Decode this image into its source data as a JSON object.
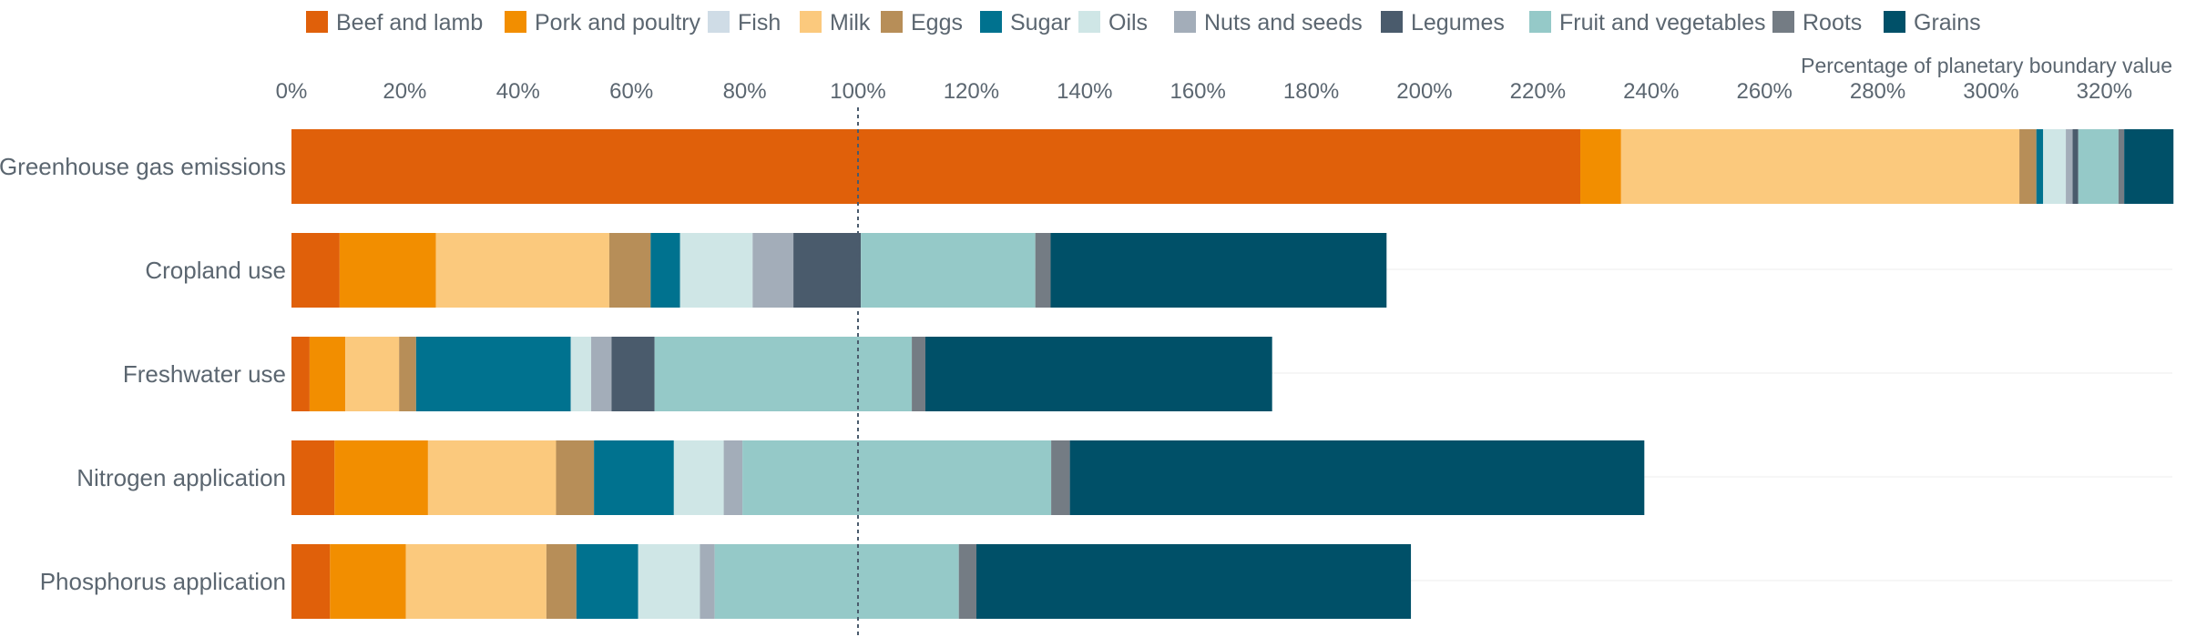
{
  "chart_data": {
    "type": "bar",
    "orientation": "horizontal",
    "stacked": true,
    "xlabel": "Percentage of planetary boundary value",
    "xlim": [
      0,
      332
    ],
    "x_ticks": [
      0,
      20,
      40,
      60,
      80,
      100,
      120,
      140,
      160,
      180,
      200,
      220,
      240,
      260,
      280,
      300,
      320
    ],
    "tick_suffix": "%",
    "reference_line": 100,
    "legend_position": "top",
    "grid": true,
    "categories": [
      "Greenhouse gas emissions",
      "Cropland use",
      "Freshwater use",
      "Nitrogen application",
      "Phosphorus application"
    ],
    "series": [
      {
        "name": "Beef and lamb",
        "color": "#e0600a",
        "values": [
          227.5,
          8.5,
          3.2,
          7.6,
          6.8
        ]
      },
      {
        "name": "Pork and poultry",
        "color": "#f28e00",
        "values": [
          7.2,
          17.0,
          6.3,
          16.5,
          13.4
        ]
      },
      {
        "name": "Fish",
        "color": "#cfdce6",
        "values": [
          0.0,
          0.0,
          0.0,
          0.0,
          0.0
        ]
      },
      {
        "name": "Milk",
        "color": "#fbc97d",
        "values": [
          70.3,
          30.6,
          9.5,
          22.6,
          24.8
        ]
      },
      {
        "name": "Eggs",
        "color": "#b78e58",
        "values": [
          3.0,
          7.3,
          3.0,
          6.7,
          5.3
        ]
      },
      {
        "name": "Sugar",
        "color": "#00728f",
        "values": [
          1.2,
          5.2,
          27.3,
          14.1,
          10.9
        ]
      },
      {
        "name": "Oils",
        "color": "#cfe6e6",
        "values": [
          4.0,
          12.8,
          3.6,
          8.8,
          10.9
        ]
      },
      {
        "name": "Nuts and seeds",
        "color": "#a3adb9",
        "values": [
          1.2,
          7.2,
          3.6,
          3.3,
          2.6
        ]
      },
      {
        "name": "Legumes",
        "color": "#4a5b6c",
        "values": [
          1.0,
          11.9,
          7.6,
          0.0,
          0.0
        ]
      },
      {
        "name": "Fruit and vegetables",
        "color": "#95c9c8",
        "values": [
          7.1,
          30.8,
          45.4,
          54.5,
          43.1
        ]
      },
      {
        "name": "Roots",
        "color": "#747c84",
        "values": [
          1.0,
          2.7,
          2.4,
          3.3,
          3.1
        ]
      },
      {
        "name": "Grains",
        "color": "#005068",
        "values": [
          8.7,
          59.3,
          61.2,
          101.4,
          76.7
        ]
      }
    ]
  }
}
